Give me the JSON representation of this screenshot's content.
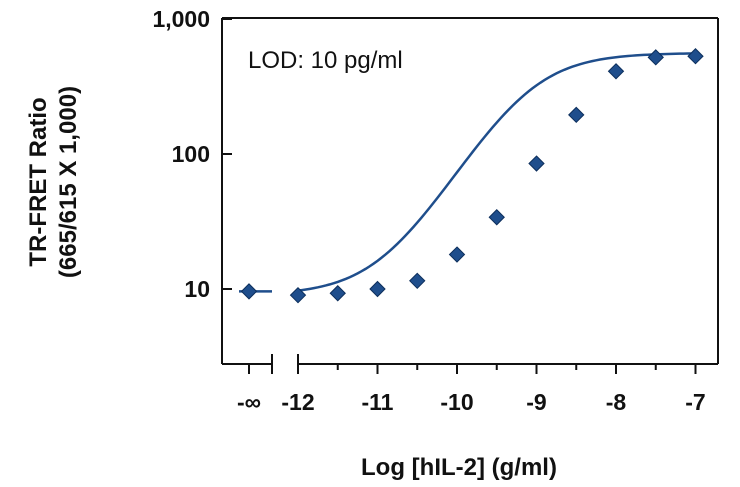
{
  "chart_data": {
    "type": "scatter",
    "title": "",
    "annotation": "LOD: 10 pg/ml",
    "xlabel": "Log [hIL-2] (g/ml)",
    "ylabel_line1": "TR-FRET Ratio",
    "ylabel_line2": "(665/615 X 1,000)",
    "y_scale": "log",
    "ylim": [
      3.2,
      1000
    ],
    "xlim": [
      -12.3,
      -6.7
    ],
    "x_axis_break": true,
    "x_tick_labels": [
      "-∞",
      "-12",
      "-11",
      "-10",
      "-9",
      "-8",
      "-7"
    ],
    "x_ticks": [
      -12,
      -11,
      -10,
      -9,
      -8,
      -7
    ],
    "x_minor_ticks": [
      -11.5,
      -10.5,
      -9.5,
      -8.5,
      -7.5
    ],
    "y_ticks": [
      10,
      100,
      1000
    ],
    "y_tick_labels": [
      "10",
      "100",
      "1,000"
    ],
    "grid": false,
    "legend": "none",
    "series": [
      {
        "zero_point": {
          "x": "-∞",
          "y": 9.6
        },
        "x": [
          -12,
          -11.5,
          -11,
          -10.5,
          -10,
          -9.5,
          -9,
          -8.5,
          -8,
          -7.5,
          -7
        ],
        "y": [
          9.0,
          9.3,
          10.0,
          11.5,
          18,
          34,
          85,
          195,
          410,
          520,
          530
        ],
        "fit": "4PL sigmoid"
      }
    ],
    "colors": {
      "marker": "#1f4e8c",
      "curve": "#1f4e8c",
      "axis": "#111111"
    }
  }
}
